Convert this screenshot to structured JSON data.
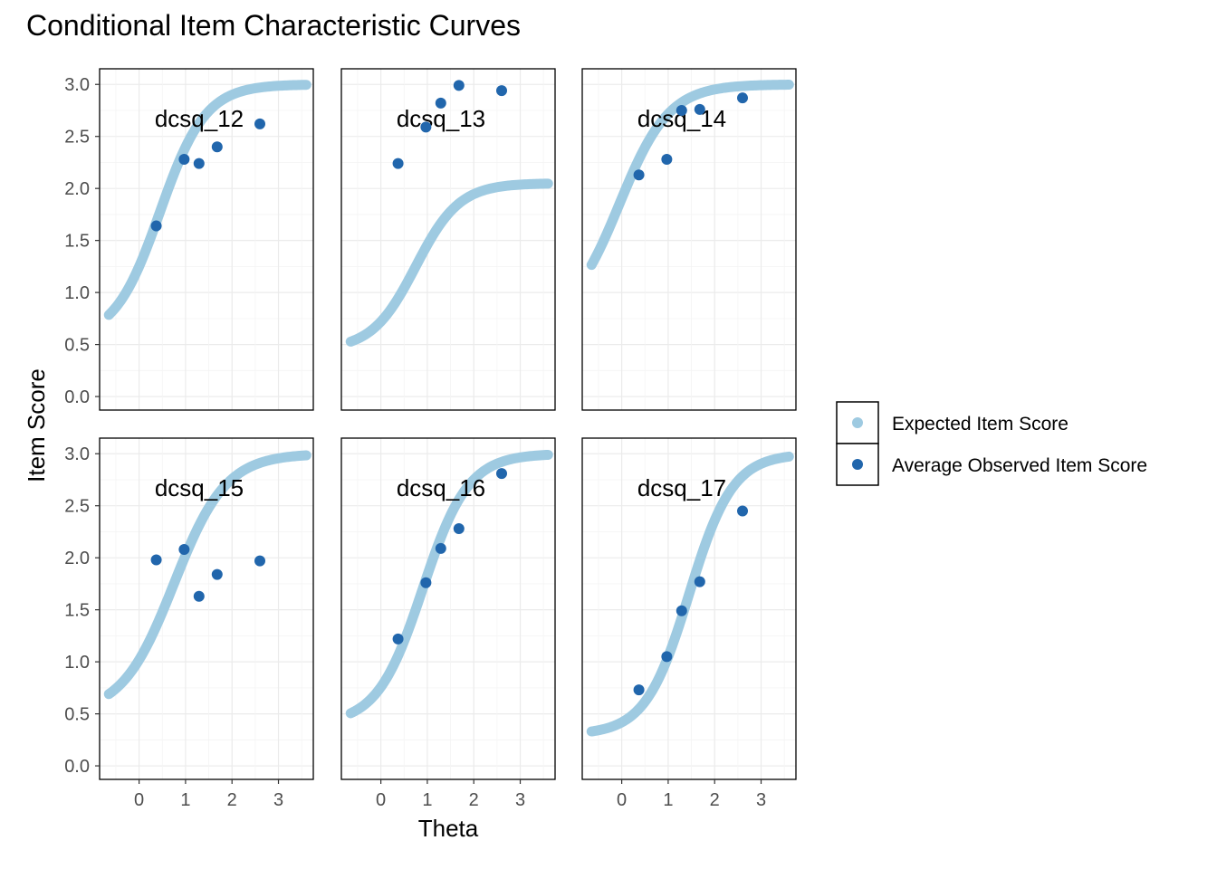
{
  "chart_data": {
    "type": "scatter",
    "title": "Conditional Item Characteristic Curves",
    "xlabel": "Theta",
    "ylabel": "Item Score",
    "xlim": [
      -0.85,
      3.75
    ],
    "ylim": [
      -0.13,
      3.15
    ],
    "x_ticks": [
      0,
      1,
      2,
      3
    ],
    "y_ticks": [
      0.0,
      0.5,
      1.0,
      1.5,
      2.0,
      2.5,
      3.0
    ],
    "y_tick_labels": [
      "0.0",
      "0.5",
      "1.0",
      "1.5",
      "2.0",
      "2.5",
      "3.0"
    ],
    "grid": true,
    "legend_position": "right",
    "legend": [
      {
        "label": "Expected Item Score",
        "color": "#9ecae1"
      },
      {
        "label": "Average Observed Item Score",
        "color": "#2166ac"
      }
    ],
    "theta_range": [
      -0.65,
      3.6
    ],
    "panels": [
      {
        "label": "dcsq_12",
        "curve": {
          "a": 1.2,
          "b": 0.45,
          "max": 3.0,
          "base": 0.55
        },
        "points": {
          "x": [
            0.37,
            0.97,
            1.29,
            1.68,
            2.6
          ],
          "y": [
            1.64,
            2.28,
            2.24,
            2.4,
            2.62
          ]
        }
      },
      {
        "label": "dcsq_13",
        "curve": {
          "a": 1.25,
          "b": 0.75,
          "max": 2.05,
          "base": 0.45
        },
        "points": {
          "x": [
            0.37,
            0.97,
            1.29,
            1.68,
            2.6
          ],
          "y": [
            2.24,
            2.59,
            2.82,
            2.99,
            2.94
          ]
        }
      },
      {
        "label": "dcsq_14",
        "curve": {
          "a": 1.1,
          "b": -0.05,
          "max": 3.0,
          "base": 0.7
        },
        "points": {
          "x": [
            0.37,
            0.97,
            1.29,
            1.68,
            2.6
          ],
          "y": [
            2.13,
            2.28,
            2.75,
            2.76,
            2.87
          ]
        }
      },
      {
        "label": "dcsq_15",
        "curve": {
          "a": 1.05,
          "b": 0.75,
          "max": 3.0,
          "base": 0.5
        },
        "points": {
          "x": [
            0.37,
            0.97,
            1.29,
            1.68,
            2.6
          ],
          "y": [
            1.98,
            2.08,
            1.63,
            1.84,
            1.97
          ]
        }
      },
      {
        "label": "dcsq_16",
        "curve": {
          "a": 1.2,
          "b": 0.9,
          "max": 3.0,
          "base": 0.4
        },
        "points": {
          "x": [
            0.37,
            0.97,
            1.29,
            1.68,
            2.6
          ],
          "y": [
            1.22,
            1.76,
            2.09,
            2.28,
            2.81
          ]
        }
      },
      {
        "label": "dcsq_17",
        "curve": {
          "a": 1.25,
          "b": 1.45,
          "max": 3.0,
          "base": 0.3
        },
        "points": {
          "x": [
            0.37,
            0.97,
            1.29,
            1.68,
            2.6
          ],
          "y": [
            0.73,
            1.05,
            1.49,
            1.77,
            2.45
          ]
        }
      }
    ]
  }
}
